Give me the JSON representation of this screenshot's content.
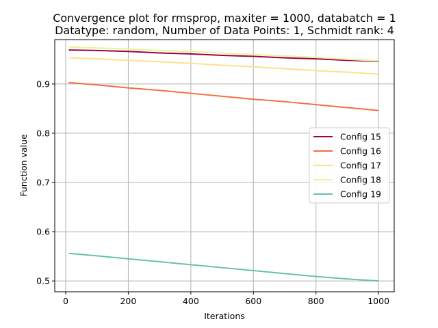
{
  "chart_data": {
    "type": "line",
    "title_line1": "Convergence plot for rmsprop, maxiter = 1000, databatch = 1",
    "title_line2": "Datatype: random, Number of Data Points: 1, Schmidt rank: 4",
    "xlabel": "Iterations",
    "ylabel": "Function value",
    "xlim": [
      -35,
      1050
    ],
    "ylim": [
      0.478,
      0.99
    ],
    "xticks": [
      0,
      200,
      400,
      600,
      800,
      1000
    ],
    "yticks": [
      0.5,
      0.6,
      0.7,
      0.8,
      0.9
    ],
    "grid": true,
    "legend_position": "center-right",
    "x": [
      10,
      100,
      200,
      300,
      400,
      500,
      600,
      700,
      800,
      900,
      1000
    ],
    "series": [
      {
        "name": "Config 15",
        "color": "#9e0142",
        "values": [
          0.969,
          0.968,
          0.966,
          0.963,
          0.961,
          0.958,
          0.956,
          0.953,
          0.951,
          0.948,
          0.946
        ]
      },
      {
        "name": "Config 16",
        "color": "#f46d43",
        "values": [
          0.903,
          0.898,
          0.892,
          0.887,
          0.881,
          0.875,
          0.869,
          0.864,
          0.858,
          0.852,
          0.846
        ]
      },
      {
        "name": "Config 17",
        "color": "#fee08b",
        "values": [
          0.953,
          0.951,
          0.948,
          0.945,
          0.942,
          0.938,
          0.935,
          0.931,
          0.927,
          0.924,
          0.92
        ]
      },
      {
        "name": "Config 18",
        "color": "#e6f598",
        "values": [
          0.975,
          0.973,
          0.971,
          0.968,
          0.966,
          0.963,
          0.96,
          0.957,
          0.954,
          0.95,
          0.947
        ]
      },
      {
        "name": "Config 19",
        "color": "#66c2a5",
        "values": [
          0.556,
          0.551,
          0.545,
          0.539,
          0.533,
          0.527,
          0.521,
          0.515,
          0.509,
          0.504,
          0.5
        ]
      }
    ]
  }
}
